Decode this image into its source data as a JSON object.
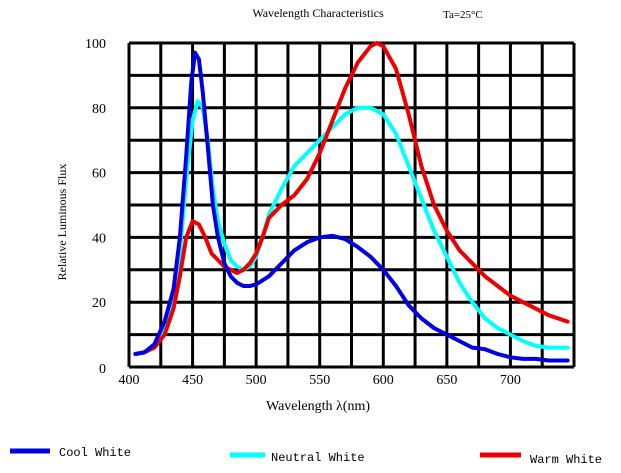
{
  "chart_data": {
    "type": "line",
    "title": "Wavelength Characteristics",
    "annotation": "Ta=25°C",
    "xlabel": "Wavelength λ(nm)",
    "ylabel": "Relative Luminous Flux",
    "xlim": [
      400,
      750
    ],
    "ylim": [
      0,
      100
    ],
    "x_ticks": [
      400,
      450,
      500,
      550,
      600,
      650,
      700
    ],
    "y_ticks": [
      0,
      20,
      40,
      60,
      80,
      100
    ],
    "grid": true,
    "legend_position": "bottom",
    "series": [
      {
        "name": "Cool White",
        "color": "#0000e0",
        "points": [
          [
            405,
            4
          ],
          [
            412,
            4.5
          ],
          [
            420,
            7
          ],
          [
            428,
            14
          ],
          [
            435,
            24
          ],
          [
            440,
            40
          ],
          [
            445,
            65
          ],
          [
            449,
            88
          ],
          [
            452,
            97
          ],
          [
            455,
            95
          ],
          [
            458,
            85
          ],
          [
            462,
            68
          ],
          [
            466,
            50
          ],
          [
            470,
            40
          ],
          [
            475,
            32
          ],
          [
            480,
            28
          ],
          [
            485,
            26
          ],
          [
            490,
            25
          ],
          [
            495,
            25
          ],
          [
            500,
            25.5
          ],
          [
            510,
            28
          ],
          [
            520,
            32
          ],
          [
            530,
            36
          ],
          [
            540,
            38.5
          ],
          [
            550,
            40
          ],
          [
            560,
            40.5
          ],
          [
            570,
            39.5
          ],
          [
            580,
            37
          ],
          [
            590,
            34
          ],
          [
            600,
            30
          ],
          [
            610,
            25
          ],
          [
            620,
            19
          ],
          [
            630,
            15
          ],
          [
            640,
            12
          ],
          [
            650,
            10
          ],
          [
            660,
            8
          ],
          [
            670,
            6
          ],
          [
            680,
            5.5
          ],
          [
            690,
            4
          ],
          [
            700,
            3
          ],
          [
            710,
            2.5
          ],
          [
            720,
            2.5
          ],
          [
            730,
            2
          ],
          [
            745,
            2
          ]
        ]
      },
      {
        "name": "Neutral White",
        "color": "#00ffff",
        "points": [
          [
            405,
            4
          ],
          [
            412,
            4.5
          ],
          [
            420,
            7
          ],
          [
            428,
            12
          ],
          [
            435,
            20
          ],
          [
            440,
            35
          ],
          [
            445,
            58
          ],
          [
            450,
            76
          ],
          [
            454,
            82
          ],
          [
            458,
            80
          ],
          [
            462,
            70
          ],
          [
            466,
            55
          ],
          [
            470,
            45
          ],
          [
            475,
            38
          ],
          [
            480,
            33
          ],
          [
            485,
            31
          ],
          [
            490,
            30
          ],
          [
            495,
            31
          ],
          [
            500,
            34
          ],
          [
            505,
            40
          ],
          [
            510,
            47
          ],
          [
            520,
            55
          ],
          [
            530,
            62
          ],
          [
            540,
            66
          ],
          [
            550,
            70
          ],
          [
            560,
            74
          ],
          [
            570,
            78
          ],
          [
            580,
            80
          ],
          [
            590,
            80
          ],
          [
            600,
            78
          ],
          [
            610,
            72
          ],
          [
            620,
            62
          ],
          [
            630,
            52
          ],
          [
            640,
            42
          ],
          [
            650,
            34
          ],
          [
            660,
            26
          ],
          [
            670,
            20
          ],
          [
            680,
            15
          ],
          [
            690,
            12
          ],
          [
            700,
            10
          ],
          [
            710,
            8
          ],
          [
            720,
            6.5
          ],
          [
            730,
            6
          ],
          [
            745,
            6
          ]
        ]
      },
      {
        "name": "Warm White",
        "color": "#ee0000",
        "points": [
          [
            405,
            4
          ],
          [
            412,
            4.5
          ],
          [
            420,
            6
          ],
          [
            428,
            10
          ],
          [
            435,
            18
          ],
          [
            440,
            28
          ],
          [
            445,
            40
          ],
          [
            450,
            45
          ],
          [
            455,
            44
          ],
          [
            460,
            40
          ],
          [
            465,
            35
          ],
          [
            470,
            33
          ],
          [
            475,
            31
          ],
          [
            480,
            30
          ],
          [
            485,
            29
          ],
          [
            490,
            30
          ],
          [
            495,
            32
          ],
          [
            500,
            35
          ],
          [
            505,
            40
          ],
          [
            510,
            46
          ],
          [
            520,
            50
          ],
          [
            530,
            53
          ],
          [
            540,
            58
          ],
          [
            550,
            66
          ],
          [
            560,
            76
          ],
          [
            570,
            86
          ],
          [
            580,
            94
          ],
          [
            590,
            99
          ],
          [
            595,
            100
          ],
          [
            600,
            99
          ],
          [
            610,
            92
          ],
          [
            620,
            78
          ],
          [
            630,
            62
          ],
          [
            640,
            50
          ],
          [
            650,
            42
          ],
          [
            660,
            36
          ],
          [
            670,
            32
          ],
          [
            680,
            28
          ],
          [
            690,
            25
          ],
          [
            700,
            22
          ],
          [
            710,
            20
          ],
          [
            720,
            18
          ],
          [
            730,
            16
          ],
          [
            745,
            14
          ]
        ]
      }
    ]
  }
}
